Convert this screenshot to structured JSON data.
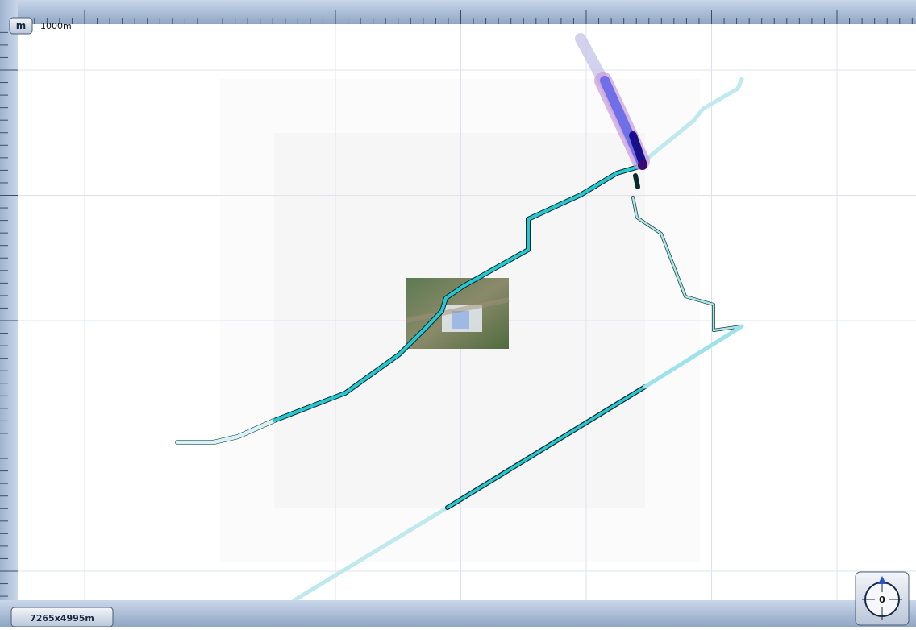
{
  "toolbar": {
    "unit_button": "m",
    "scale_label": "1000m"
  },
  "status": {
    "dimensions": "7265x4995m"
  },
  "compass": {
    "heading": "0"
  }
}
